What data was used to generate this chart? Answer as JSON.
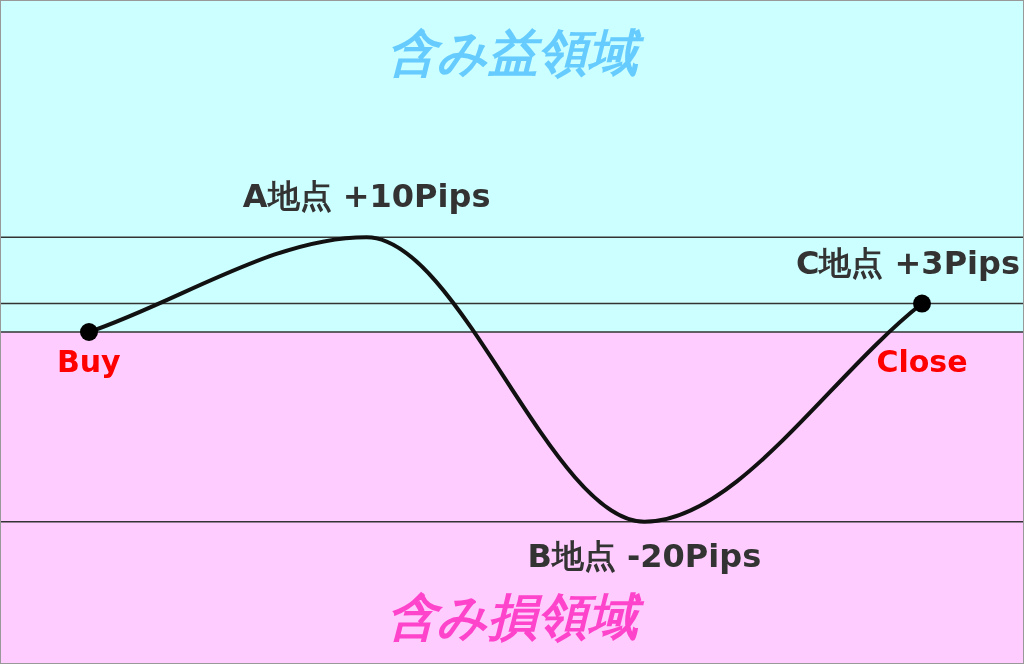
{
  "chart_data": {
    "type": "line",
    "categories": [
      "Buy",
      null,
      null,
      "Close"
    ],
    "ylim": [
      -35,
      35
    ],
    "series": [
      {
        "color": "#111111",
        "values": [
          0,
          10,
          -20,
          3
        ],
        "value_labels": [
          null,
          "A地点 +10Pips",
          "B地点 -20Pips",
          "C地点 +3Pips"
        ]
      },
      {
        "type": "scatter",
        "color": "#000000",
        "marker": "circle",
        "x": [
          "Buy",
          "Close"
        ],
        "values": [
          0,
          3
        ]
      }
    ],
    "ref_lines": [
      {
        "axis": "y",
        "value": 10
      },
      {
        "axis": "y",
        "value": 3
      },
      {
        "axis": "y",
        "value": 0
      },
      {
        "axis": "y",
        "value": -20
      }
    ],
    "bands": [
      {
        "axis": "y",
        "from": 0,
        "to": 35,
        "label": "含み益領域",
        "color": "#ccffff"
      },
      {
        "axis": "y",
        "from": -35,
        "to": 0,
        "label": "含み損領域",
        "color": "#ffccff"
      }
    ],
    "tick_labels": "x"
  }
}
